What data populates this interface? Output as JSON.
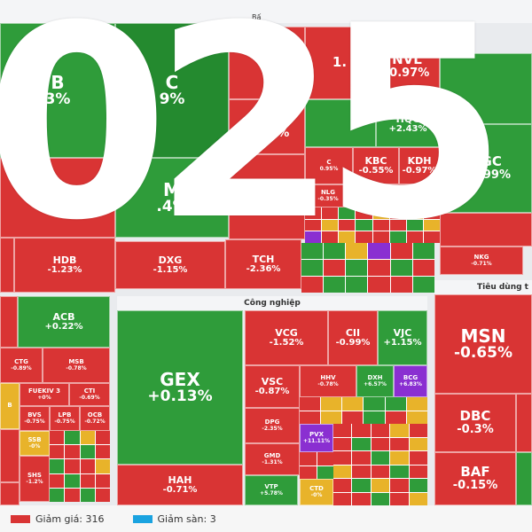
{
  "sectors": {
    "top": "Bấ",
    "industry": "Công nghiệp",
    "consumer": "Tiêu dùng t"
  },
  "overlay_text": "025",
  "tiles": {
    "b_left": {
      "sym": "B",
      "pct": "3%"
    },
    "c_mid": {
      "sym": "C",
      "pct": "9%"
    },
    "cm": {
      "sym": "CM",
      "pct": ""
    },
    "m": {
      "sym": "M",
      "pct": ".4%"
    },
    "n11": {
      "sym": "",
      "pct": "1%"
    },
    "one": {
      "sym": "1.",
      "pct": ""
    },
    "nvl": {
      "sym": "NVL",
      "pct": "-0.97%"
    },
    "pdr": {
      "sym": "PDR",
      "pct": "-1.31%"
    },
    "hqc": {
      "sym": "HQC",
      "pct": "+2.43%"
    },
    "kbc": {
      "sym": "KBC",
      "pct": "-0.55%"
    },
    "kdh": {
      "sym": "KDH",
      "pct": "-0.97%"
    },
    "c95": {
      "sym": "C",
      "pct": "0.95%"
    },
    "dgc": {
      "sym": "DGC",
      "pct": "+0.99%"
    },
    "nlg": {
      "sym": "NLG",
      "pct": "-0.35%"
    },
    "hdb": {
      "sym": "HDB",
      "pct": "-1.23%"
    },
    "dxg": {
      "sym": "DXG",
      "pct": "-1.15%"
    },
    "tch": {
      "sym": "TCH",
      "pct": "-2.36%"
    },
    "nkg": {
      "sym": "NKG",
      "pct": "-0.71%"
    },
    "acb": {
      "sym": "ACB",
      "pct": "+0.22%"
    },
    "ctg": {
      "sym": "CTG",
      "pct": "-0.89%"
    },
    "msb": {
      "sym": "MSB",
      "pct": "-0.78%"
    },
    "gex": {
      "sym": "GEX",
      "pct": "+0.13%"
    },
    "vcg": {
      "sym": "VCG",
      "pct": "-1.52%"
    },
    "cii": {
      "sym": "CII",
      "pct": "-0.99%"
    },
    "vjc": {
      "sym": "VJC",
      "pct": "+1.15%"
    },
    "msn": {
      "sym": "MSN",
      "pct": "-0.65%"
    },
    "vsc": {
      "sym": "VSC",
      "pct": "-0.87%"
    },
    "hhv": {
      "sym": "HHV",
      "pct": "-0.78%"
    },
    "dxh": {
      "sym": "DXH",
      "pct": "+6.57%"
    },
    "bcg": {
      "sym": "BCG",
      "pct": "+6.83%"
    },
    "dpg": {
      "sym": "DPG",
      "pct": "-2.35%"
    },
    "dbc": {
      "sym": "DBC",
      "pct": "-0.3%"
    },
    "gmd": {
      "sym": "GMD",
      "pct": "-1.31%"
    },
    "pvx": {
      "sym": "PVX",
      "pct": "+11.11%"
    },
    "hah": {
      "sym": "HAH",
      "pct": "-0.71%"
    },
    "vtp": {
      "sym": "VTP",
      "pct": "+5.78%"
    },
    "cto": {
      "sym": "CTD",
      "pct": "-0%"
    },
    "baf": {
      "sym": "BAF",
      "pct": "-0.15%"
    },
    "fuekiv": {
      "sym": "FUEKIV 3",
      "pct": "+0%"
    },
    "ctr": {
      "sym": "CTI",
      "pct": "-0.69%"
    },
    "bvs": {
      "sym": "BVS",
      "pct": "-0.75%"
    },
    "lpb": {
      "sym": "LPB",
      "pct": "-0.75%"
    },
    "ocb": {
      "sym": "OCB",
      "pct": "-0.72%"
    },
    "ssb": {
      "sym": "SSB",
      "pct": "-0%"
    },
    "shs": {
      "sym": "SHS",
      "pct": "-1.2%"
    },
    "b_small": {
      "sym": "B",
      "pct": ""
    }
  },
  "legend": {
    "down_label": "Giảm giá: 316",
    "floor_label": "Giảm sàn: 3",
    "down_color": "#d93434",
    "floor_color": "#1aa3e0"
  }
}
